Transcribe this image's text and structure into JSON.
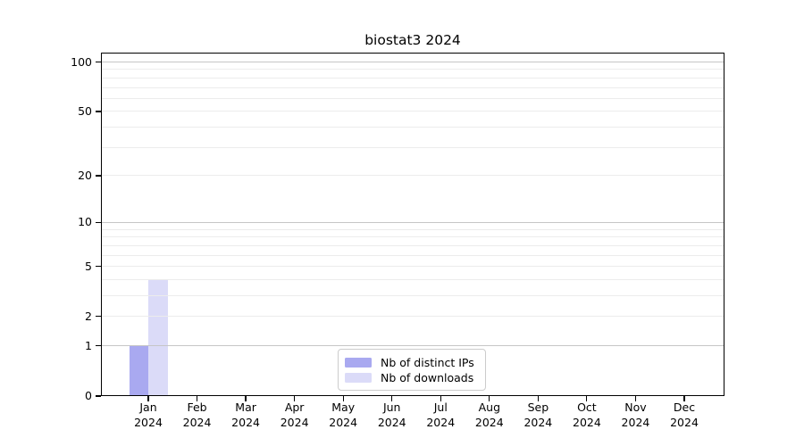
{
  "chart_data": {
    "type": "bar",
    "title": "biostat3 2024",
    "categories": [
      "Jan",
      "Feb",
      "Mar",
      "Apr",
      "May",
      "Jun",
      "Jul",
      "Aug",
      "Sep",
      "Oct",
      "Nov",
      "Dec"
    ],
    "x_tick_second_line": "2024",
    "series": [
      {
        "name": "Nb of distinct IPs",
        "color": "#a9a9f0",
        "values": [
          1,
          0,
          0,
          0,
          0,
          0,
          0,
          0,
          0,
          0,
          0,
          0
        ]
      },
      {
        "name": "Nb of downloads",
        "color": "#dbdbf8",
        "values": [
          4,
          0,
          0,
          0,
          0,
          0,
          0,
          0,
          0,
          0,
          0,
          0
        ]
      }
    ],
    "xlabel": "",
    "ylabel": "",
    "y_scale": "log1p",
    "ylim": [
      0,
      114
    ],
    "y_tick_values": [
      0,
      1,
      2,
      5,
      10,
      20,
      50,
      100
    ],
    "y_gridlines_minor": [
      2,
      3,
      4,
      5,
      6,
      7,
      8,
      9,
      20,
      30,
      40,
      50,
      60,
      70,
      80,
      90
    ],
    "y_gridlines_major": [
      1,
      10,
      100
    ],
    "grid": "horizontal",
    "legend_position": "bottom-center"
  },
  "colors": {
    "background": "#ffffff",
    "axis": "#000000",
    "text": "#000000",
    "grid_minor": "#ececec",
    "grid_major": "#c6c6c6",
    "legend_border": "#cccccc"
  }
}
